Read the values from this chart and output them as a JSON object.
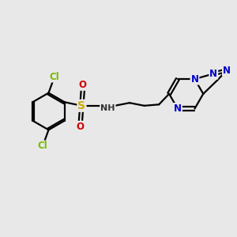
{
  "bg_color": "#e8e8e8",
  "bond_color": "#000000",
  "bond_width": 1.6,
  "atom_colors": {
    "Cl": "#77bb00",
    "S": "#ccaa00",
    "O": "#cc0000",
    "N": "#0000cc",
    "NH": "#333333"
  },
  "font_size": 8.5
}
